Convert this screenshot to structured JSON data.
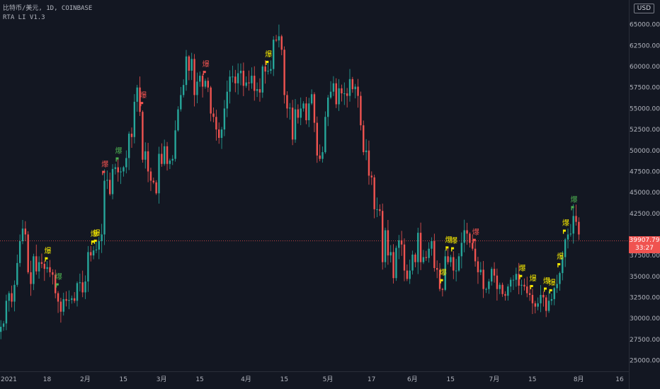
{
  "legend": {
    "symbol": "比特币/美元, 1D, COINBASE",
    "indicator": "RTA LI V1.3"
  },
  "currency_button": "USD",
  "last_price": {
    "value": "39907.79",
    "countdown": "33:27"
  },
  "colors": {
    "background": "#131722",
    "up": "#26a69a",
    "down": "#ef5350",
    "signal_yellow": "#f5e800",
    "signal_red": "#f05350",
    "signal_green": "#4caf50",
    "axis_text": "#b2b5be"
  },
  "signal_char": "爆",
  "chart_data": {
    "type": "candlestick",
    "symbol": "BTC/USD",
    "interval": "1D",
    "x_ticks": [
      "2021",
      "18",
      "2月",
      "15",
      "3月",
      "15",
      "4月",
      "15",
      "5月",
      "17",
      "6月",
      "15",
      "7月",
      "15",
      "8月",
      "16"
    ],
    "y_ticks": [
      "65000.00",
      "62500.00",
      "60000.00",
      "57500.00",
      "55000.00",
      "52500.00",
      "50000.00",
      "47500.00",
      "45000.00",
      "42500.00",
      "37500.00",
      "35000.00",
      "32500.00",
      "30000.00",
      "27500.00",
      "25000.00"
    ],
    "ylim": [
      23700,
      67500
    ],
    "last_price": 39907.79,
    "closes": [
      29000,
      29400,
      32100,
      33000,
      32000,
      34000,
      36600,
      39200,
      40700,
      40000,
      35500,
      34100,
      37400,
      35600,
      36700,
      36500,
      35900,
      36100,
      35500,
      35200,
      33000,
      32000,
      30800,
      32300,
      32100,
      32200,
      32400,
      32100,
      34200,
      34300,
      33100,
      34400,
      37900,
      37500,
      38100,
      38200,
      39200,
      40000,
      46400,
      46500,
      44800,
      47800,
      48000,
      47400,
      47500,
      48000,
      49100,
      52000,
      51600,
      55800,
      57500,
      54600,
      48900,
      49900,
      47500,
      46400,
      46200,
      44900,
      49600,
      48400,
      50500,
      48400,
      48800,
      49000,
      52400,
      54900,
      56600,
      57800,
      61200,
      59500,
      60900,
      56600,
      58200,
      58900,
      57600,
      58300,
      57500,
      54400,
      54000,
      52500,
      51500,
      52500,
      55000,
      57000,
      58800,
      58800,
      58000,
      59200,
      59500,
      57700,
      58100,
      58000,
      58900,
      57100,
      57300,
      56900,
      60000,
      59400,
      59500,
      59700,
      63200,
      63100,
      63600,
      62000,
      56600,
      55000,
      55100,
      51300,
      54900,
      53900,
      55000,
      55600,
      53600,
      55600,
      56700,
      53300,
      49400,
      49000,
      49800,
      54000,
      56300,
      57000,
      58000,
      55500,
      57400,
      56800,
      56800,
      56500,
      58500,
      57300,
      57600,
      56500,
      53000,
      49800,
      50000,
      47000,
      46800,
      43000,
      43000,
      42800,
      36700,
      40500,
      37500,
      37900,
      34800,
      38400,
      39300,
      38800,
      35700,
      34700,
      35700,
      37600,
      36700,
      40200,
      36700,
      37300,
      37200,
      38300,
      39200,
      36000,
      35800,
      33500,
      33400,
      37400,
      36700,
      37300,
      35700,
      35700,
      37400,
      39000,
      40500,
      40100,
      39000,
      38300,
      36800,
      35500,
      35800,
      33500,
      33500,
      34400,
      35900,
      35100,
      33500,
      34000,
      32900,
      32700,
      33800,
      34600,
      34600,
      35300,
      33900,
      34000,
      33800,
      33000,
      32800,
      31800,
      31400,
      31800,
      32800,
      32500,
      30900,
      32100,
      32300,
      33600,
      34100,
      35400,
      37300,
      39400,
      40000,
      40100,
      42200,
      41500,
      40000
    ],
    "signals": [
      {
        "label": "爆",
        "color": "yellow",
        "date_index": 17
      },
      {
        "label": "爆",
        "color": "green",
        "date_index": 21
      },
      {
        "label": "爆",
        "color": "yellow",
        "date_index": 34
      },
      {
        "label": "爆",
        "color": "yellow",
        "date_index": 35
      },
      {
        "label": "爆",
        "color": "red",
        "date_index": 38
      },
      {
        "label": "爆",
        "color": "green",
        "date_index": 43
      },
      {
        "label": "爆",
        "color": "red",
        "date_index": 52
      },
      {
        "label": "爆",
        "color": "red",
        "date_index": 75
      },
      {
        "label": "爆",
        "color": "yellow",
        "date_index": 98
      },
      {
        "label": "爆",
        "color": "yellow",
        "date_index": 162
      },
      {
        "label": "爆",
        "color": "yellow",
        "date_index": 164
      },
      {
        "label": "爆",
        "color": "yellow",
        "date_index": 166
      },
      {
        "label": "爆",
        "color": "red",
        "date_index": 174
      },
      {
        "label": "爆",
        "color": "yellow",
        "date_index": 191
      },
      {
        "label": "爆",
        "color": "yellow",
        "date_index": 195
      },
      {
        "label": "爆",
        "color": "yellow",
        "date_index": 200
      },
      {
        "label": "爆",
        "color": "yellow",
        "date_index": 202
      },
      {
        "label": "爆",
        "color": "yellow",
        "date_index": 205
      },
      {
        "label": "爆",
        "color": "yellow",
        "date_index": 207
      },
      {
        "label": "爆",
        "color": "green",
        "date_index": 210
      }
    ]
  }
}
